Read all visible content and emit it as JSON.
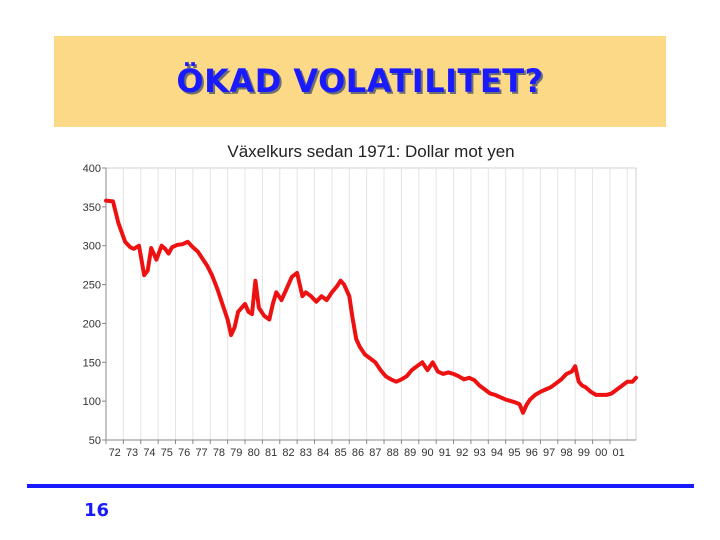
{
  "slide": {
    "title": "ÖKAD VOLATILITET?",
    "number": "16"
  },
  "colors": {
    "title_band": "#fcd986",
    "accent_blue": "#1a1aff",
    "series_red": "#ee1111"
  },
  "chart_data": {
    "type": "line",
    "title": "Växelkurs sedan 1971: Dollar mot yen",
    "xlabel": "",
    "ylabel": "",
    "ylim": [
      50,
      400
    ],
    "yticks": [
      50,
      100,
      150,
      200,
      250,
      300,
      350,
      400
    ],
    "xlim": [
      1971.5,
      2002.0
    ],
    "xtick_labels": [
      "72",
      "73",
      "74",
      "75",
      "76",
      "77",
      "78",
      "79",
      "80",
      "81",
      "82",
      "83",
      "84",
      "85",
      "86",
      "87",
      "88",
      "89",
      "90",
      "91",
      "92",
      "93",
      "94",
      "95",
      "96",
      "97",
      "98",
      "99",
      "00",
      "01"
    ],
    "grid": "vertical-lines",
    "legend": "none",
    "series": [
      {
        "x": [
          1971.5,
          1971.9,
          1972.2,
          1972.6,
          1972.9,
          1973.1,
          1973.4,
          1973.7,
          1973.9,
          1974.1,
          1974.4,
          1974.7,
          1974.9,
          1975.1,
          1975.3,
          1975.6,
          1975.9,
          1976.2,
          1976.5,
          1976.8,
          1977.0,
          1977.3,
          1977.6,
          1977.9,
          1978.2,
          1978.5,
          1978.7,
          1978.9,
          1979.1,
          1979.3,
          1979.5,
          1979.7,
          1979.9,
          1980.1,
          1980.3,
          1980.6,
          1980.9,
          1981.1,
          1981.3,
          1981.6,
          1981.9,
          1982.2,
          1982.5,
          1982.8,
          1983.0,
          1983.3,
          1983.6,
          1983.9,
          1984.2,
          1984.5,
          1984.8,
          1985.0,
          1985.2,
          1985.5,
          1985.7,
          1985.9,
          1986.1,
          1986.4,
          1986.7,
          1987.0,
          1987.3,
          1987.6,
          1987.9,
          1988.2,
          1988.5,
          1988.8,
          1989.1,
          1989.4,
          1989.7,
          1990.0,
          1990.3,
          1990.6,
          1990.9,
          1991.2,
          1991.5,
          1991.8,
          1992.1,
          1992.4,
          1992.7,
          1993.0,
          1993.3,
          1993.6,
          1993.9,
          1994.2,
          1994.5,
          1994.8,
          1995.1,
          1995.3,
          1995.5,
          1995.7,
          1995.9,
          1996.2,
          1996.5,
          1996.8,
          1997.1,
          1997.4,
          1997.7,
          1998.0,
          1998.3,
          1998.5,
          1998.7,
          1998.9,
          1999.1,
          1999.4,
          1999.7,
          2000.0,
          2000.3,
          2000.6,
          2000.9,
          2001.2,
          2001.5,
          2001.8,
          2002.0
        ],
        "values": [
          358,
          357,
          330,
          305,
          298,
          296,
          300,
          262,
          268,
          297,
          282,
          300,
          296,
          290,
          298,
          301,
          302,
          305,
          298,
          292,
          285,
          275,
          262,
          245,
          225,
          205,
          185,
          195,
          215,
          220,
          225,
          215,
          212,
          255,
          220,
          210,
          205,
          225,
          240,
          230,
          245,
          260,
          265,
          235,
          240,
          235,
          228,
          235,
          230,
          240,
          248,
          255,
          250,
          235,
          205,
          180,
          170,
          160,
          155,
          150,
          140,
          132,
          128,
          125,
          128,
          132,
          140,
          145,
          150,
          140,
          150,
          138,
          135,
          137,
          135,
          132,
          128,
          130,
          127,
          120,
          115,
          110,
          108,
          105,
          102,
          100,
          98,
          96,
          85,
          95,
          102,
          108,
          112,
          115,
          118,
          123,
          128,
          135,
          138,
          145,
          125,
          120,
          118,
          112,
          108,
          108,
          108,
          110,
          115,
          120,
          125,
          125,
          130
        ]
      }
    ]
  }
}
